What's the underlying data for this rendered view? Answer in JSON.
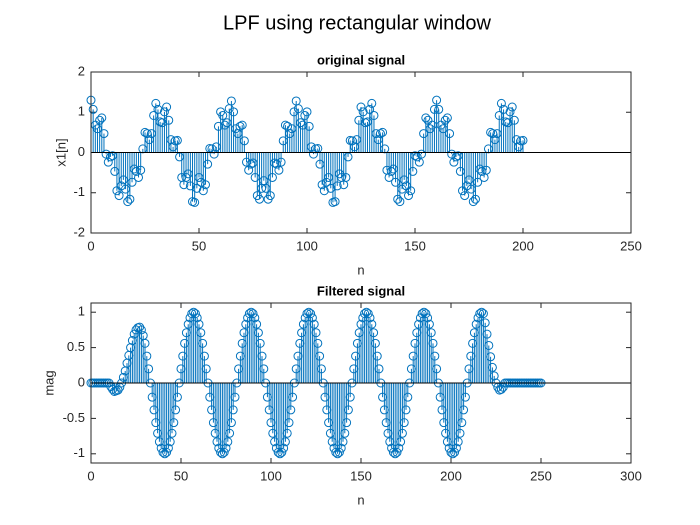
{
  "title": "LPF using rectangular window",
  "chart_data": [
    {
      "type": "stem",
      "title": "original signal",
      "xlabel": "n",
      "ylabel": "x1[n]",
      "color": "#0072BD",
      "grid": false,
      "xlim": [
        0,
        250
      ],
      "ylim": [
        -2,
        2
      ],
      "xticks": [
        0,
        50,
        100,
        150,
        200,
        250
      ],
      "yticks": [
        -2,
        -1,
        0,
        1,
        2
      ],
      "x": [
        0,
        1,
        2,
        3,
        4,
        5,
        6,
        7,
        8,
        9,
        10,
        11,
        12,
        13,
        14,
        15,
        16,
        17,
        18,
        19,
        20,
        21,
        22,
        23,
        24,
        25,
        26,
        27,
        28,
        29,
        30,
        31,
        32,
        33,
        34,
        35,
        36,
        37,
        38,
        39,
        40,
        41,
        42,
        43,
        44,
        45,
        46,
        47,
        48,
        49,
        50,
        51,
        52,
        53,
        54,
        55,
        56,
        57,
        58,
        59,
        60,
        61,
        62,
        63,
        64,
        65,
        66,
        67,
        68,
        69,
        70,
        71,
        72,
        73,
        74,
        75,
        76,
        77,
        78,
        79,
        80,
        81,
        82,
        83,
        84,
        85,
        86,
        87,
        88,
        89,
        90,
        91,
        92,
        93,
        94,
        95,
        96,
        97,
        98,
        99,
        100,
        101,
        102,
        103,
        104,
        105,
        106,
        107,
        108,
        109,
        110,
        111,
        112,
        113,
        114,
        115,
        116,
        117,
        118,
        119,
        120,
        121,
        122,
        123,
        124,
        125,
        126,
        127,
        128,
        129,
        130,
        131,
        132,
        133,
        134,
        135,
        136,
        137,
        138,
        139,
        140,
        141,
        142,
        143,
        144,
        145,
        146,
        147,
        148,
        149,
        150,
        151,
        152,
        153,
        154,
        155,
        156,
        157,
        158,
        159,
        160,
        161,
        162,
        163,
        164,
        165,
        166,
        167,
        168,
        169,
        170,
        171,
        172,
        173,
        174,
        175,
        176,
        177,
        178,
        179,
        180,
        181,
        182,
        183,
        184,
        185,
        186,
        187,
        188,
        189,
        190,
        191,
        192,
        193,
        194,
        195,
        196,
        197,
        198,
        199,
        200
      ],
      "values": [
        1.3,
        1.07,
        0.68,
        0.59,
        0.8,
        0.86,
        0.47,
        -0.04,
        -0.24,
        -0.11,
        -0.08,
        -0.47,
        -0.95,
        -1.07,
        -0.83,
        -0.68,
        -0.91,
        -1.22,
        -1.16,
        -0.74,
        -0.41,
        -0.47,
        -0.62,
        -0.44,
        0.09,
        0.5,
        0.47,
        0.32,
        0.47,
        0.92,
        1.22,
        1.07,
        0.76,
        0.74,
        1.01,
        1.13,
        0.8,
        0.32,
        0.14,
        0.29,
        0.3,
        -0.11,
        -0.62,
        -0.8,
        -0.62,
        -0.53,
        -0.83,
        -1.22,
        -1.24,
        -0.89,
        -0.62,
        -0.74,
        -0.95,
        -0.8,
        -0.29,
        0.1,
        0.09,
        -0.04,
        0.14,
        0.65,
        1.01,
        0.92,
        0.68,
        0.74,
        1.09,
        1.28,
        1.01,
        0.59,
        0.47,
        0.65,
        0.68,
        0.29,
        -0.24,
        -0.44,
        -0.29,
        -0.26,
        -0.62,
        -1.07,
        -1.16,
        -0.89,
        -0.7,
        -0.89,
        -1.16,
        -1.07,
        -0.62,
        -0.26,
        -0.29,
        -0.44,
        -0.24,
        0.29,
        0.68,
        0.65,
        0.47,
        0.59,
        1.01,
        1.28,
        1.09,
        0.74,
        0.68,
        0.92,
        1.01,
        0.65,
        0.14,
        -0.04,
        0.09,
        0.1,
        -0.29,
        -0.8,
        -0.95,
        -0.74,
        -0.62,
        -0.89,
        -1.24,
        -1.22,
        -0.83,
        -0.53,
        -0.62,
        -0.8,
        -0.62,
        -0.11,
        0.3,
        0.29,
        0.14,
        0.32,
        0.8,
        1.13,
        1.01,
        0.74,
        0.76,
        1.07,
        1.22,
        0.92,
        0.47,
        0.32,
        0.47,
        0.5,
        0.09,
        -0.44,
        -0.62,
        -0.47,
        -0.41,
        -0.74,
        -1.16,
        -1.22,
        -0.91,
        -0.68,
        -0.83,
        -1.07,
        -0.95,
        -0.47,
        -0.08,
        -0.11,
        -0.24,
        -0.04,
        0.47,
        0.86,
        0.8,
        0.59,
        0.68,
        1.07,
        1.3,
        1.07,
        0.68,
        0.59,
        0.8,
        0.86,
        0.47,
        -0.04,
        -0.24,
        -0.11,
        -0.08,
        -0.47,
        -0.95,
        -1.07,
        -0.83,
        -0.68,
        -0.91,
        -1.22,
        -1.16,
        -0.74,
        -0.41,
        -0.47,
        -0.62,
        -0.44,
        0.09,
        0.5,
        0.47,
        0.32,
        0.47,
        0.92,
        1.22,
        1.07,
        0.76,
        0.74,
        1.01,
        1.13,
        0.8,
        0.32,
        0.14,
        0.29,
        0.3
      ]
    },
    {
      "type": "stem",
      "title": "Filtered signal",
      "xlabel": "n",
      "ylabel": "mag",
      "color": "#0072BD",
      "grid": false,
      "xlim": [
        0,
        300
      ],
      "ylim": [
        -1.13,
        1.13
      ],
      "xticks": [
        0,
        50,
        100,
        150,
        200,
        250,
        300
      ],
      "yticks": [
        -1,
        -0.5,
        0,
        0.5,
        1
      ],
      "x": [
        0,
        1,
        2,
        3,
        4,
        5,
        6,
        7,
        8,
        9,
        10,
        11,
        12,
        13,
        14,
        15,
        16,
        17,
        18,
        19,
        20,
        21,
        22,
        23,
        24,
        25,
        26,
        27,
        28,
        29,
        30,
        31,
        32,
        33,
        34,
        35,
        36,
        37,
        38,
        39,
        40,
        41,
        42,
        43,
        44,
        45,
        46,
        47,
        48,
        49,
        50,
        51,
        52,
        53,
        54,
        55,
        56,
        57,
        58,
        59,
        60,
        61,
        62,
        63,
        64,
        65,
        66,
        67,
        68,
        69,
        70,
        71,
        72,
        73,
        74,
        75,
        76,
        77,
        78,
        79,
        80,
        81,
        82,
        83,
        84,
        85,
        86,
        87,
        88,
        89,
        90,
        91,
        92,
        93,
        94,
        95,
        96,
        97,
        98,
        99,
        100,
        101,
        102,
        103,
        104,
        105,
        106,
        107,
        108,
        109,
        110,
        111,
        112,
        113,
        114,
        115,
        116,
        117,
        118,
        119,
        120,
        121,
        122,
        123,
        124,
        125,
        126,
        127,
        128,
        129,
        130,
        131,
        132,
        133,
        134,
        135,
        136,
        137,
        138,
        139,
        140,
        141,
        142,
        143,
        144,
        145,
        146,
        147,
        148,
        149,
        150,
        151,
        152,
        153,
        154,
        155,
        156,
        157,
        158,
        159,
        160,
        161,
        162,
        163,
        164,
        165,
        166,
        167,
        168,
        169,
        170,
        171,
        172,
        173,
        174,
        175,
        176,
        177,
        178,
        179,
        180,
        181,
        182,
        183,
        184,
        185,
        186,
        187,
        188,
        189,
        190,
        191,
        192,
        193,
        194,
        195,
        196,
        197,
        198,
        199,
        200,
        201,
        202,
        203,
        204,
        205,
        206,
        207,
        208,
        209,
        210,
        211,
        212,
        213,
        214,
        215,
        216,
        217,
        218,
        219,
        220,
        221,
        222,
        223,
        224,
        225,
        226,
        227,
        228,
        229,
        230,
        231,
        232,
        233,
        234,
        235,
        236,
        237,
        238,
        239,
        240,
        241,
        242,
        243,
        244,
        245,
        246,
        247,
        248,
        249,
        250
      ],
      "values": [
        0,
        0,
        0,
        0,
        0,
        0,
        0,
        0,
        0,
        0,
        0,
        -0.05,
        -0.09,
        -0.12,
        -0.11,
        -0.1,
        -0.06,
        0,
        0.08,
        0.17,
        0.28,
        0.39,
        0.5,
        0.6,
        0.69,
        0.75,
        0.78,
        0.79,
        0.75,
        0.67,
        0.56,
        0.38,
        0.2,
        0,
        -0.2,
        -0.38,
        -0.56,
        -0.71,
        -0.83,
        -0.92,
        -0.98,
        -1,
        -0.98,
        -0.92,
        -0.83,
        -0.71,
        -0.56,
        -0.38,
        -0.2,
        0,
        0.2,
        0.38,
        0.56,
        0.71,
        0.83,
        0.92,
        0.98,
        1,
        0.98,
        0.92,
        0.83,
        0.71,
        0.56,
        0.38,
        0.2,
        0,
        -0.2,
        -0.38,
        -0.56,
        -0.71,
        -0.83,
        -0.92,
        -0.98,
        -1,
        -0.98,
        -0.92,
        -0.83,
        -0.71,
        -0.56,
        -0.38,
        -0.2,
        0,
        0.2,
        0.38,
        0.56,
        0.71,
        0.83,
        0.92,
        0.98,
        1,
        0.98,
        0.92,
        0.83,
        0.71,
        0.56,
        0.38,
        0.2,
        0,
        -0.2,
        -0.38,
        -0.56,
        -0.71,
        -0.83,
        -0.92,
        -0.98,
        -1,
        -0.98,
        -0.92,
        -0.83,
        -0.71,
        -0.56,
        -0.38,
        -0.2,
        0,
        0.2,
        0.38,
        0.56,
        0.71,
        0.83,
        0.92,
        0.98,
        1,
        0.98,
        0.92,
        0.83,
        0.71,
        0.56,
        0.38,
        0.2,
        0,
        -0.2,
        -0.38,
        -0.56,
        -0.71,
        -0.83,
        -0.92,
        -0.98,
        -1,
        -0.98,
        -0.92,
        -0.83,
        -0.71,
        -0.56,
        -0.38,
        -0.2,
        0,
        0.2,
        0.38,
        0.56,
        0.71,
        0.83,
        0.92,
        0.98,
        1,
        0.98,
        0.92,
        0.83,
        0.71,
        0.56,
        0.38,
        0.2,
        0,
        -0.2,
        -0.38,
        -0.56,
        -0.71,
        -0.83,
        -0.92,
        -0.98,
        -1,
        -0.98,
        -0.92,
        -0.83,
        -0.71,
        -0.56,
        -0.38,
        -0.2,
        0,
        0.2,
        0.38,
        0.56,
        0.71,
        0.83,
        0.92,
        0.98,
        1,
        0.98,
        0.92,
        0.83,
        0.71,
        0.56,
        0.38,
        0.2,
        0,
        -0.2,
        -0.38,
        -0.56,
        -0.71,
        -0.83,
        -0.92,
        -0.98,
        -1,
        -0.98,
        -0.92,
        -0.83,
        -0.71,
        -0.56,
        -0.38,
        -0.2,
        0,
        0.2,
        0.38,
        0.56,
        0.71,
        0.83,
        0.92,
        0.98,
        1,
        0.98,
        0.85,
        0.69,
        0.53,
        0.37,
        0.22,
        0.1,
        0,
        -0.06,
        -0.1,
        -0.09,
        -0.06,
        0,
        0,
        0,
        0,
        0,
        0,
        0,
        0,
        0,
        0,
        0,
        0,
        0,
        0,
        0,
        0,
        0,
        0,
        0,
        0,
        0
      ]
    }
  ]
}
